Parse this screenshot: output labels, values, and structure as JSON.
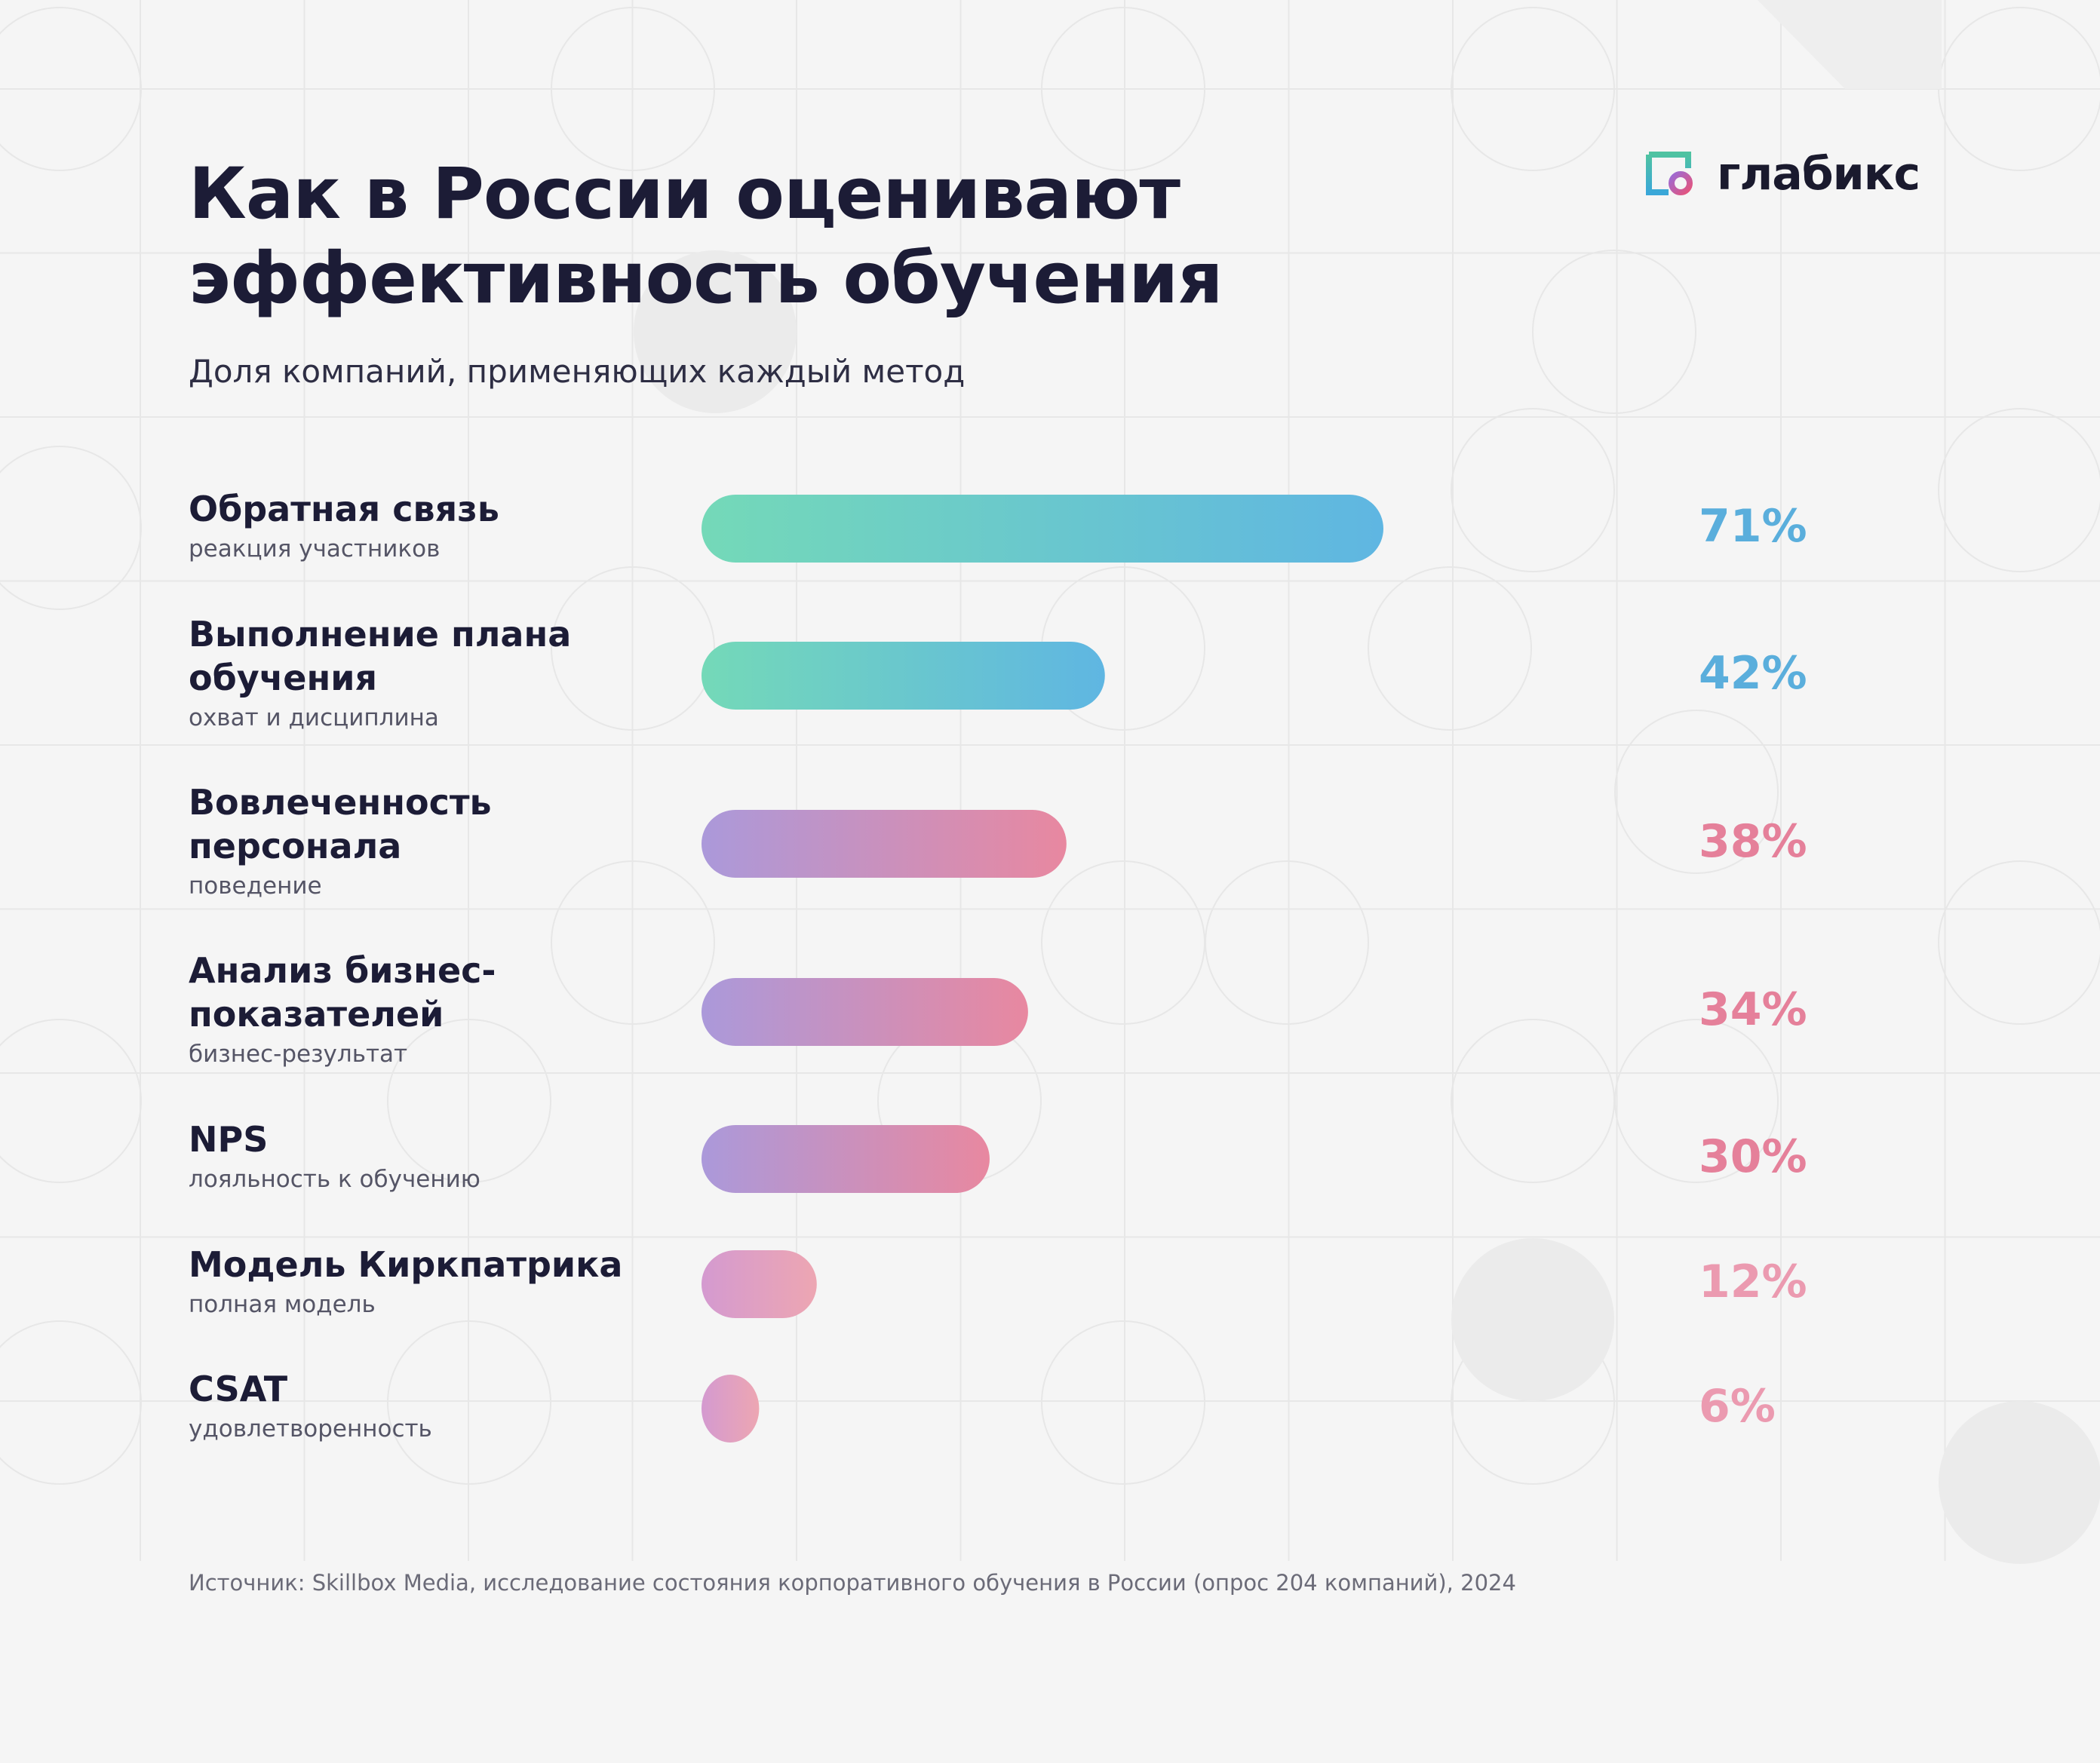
{
  "brand": {
    "logo_text": "глабикс",
    "icon": "logo-frame-circle-icon"
  },
  "title": "Как в России оценивают\nэффективность обучения",
  "subtitle": "Доля компаний, применяющих каждый метод",
  "source": "Источник: Skillbox Media, исследование состояния корпоративного обучения в России (опрос 204 компаний), 2024",
  "colors": {
    "background": "#f5f5f5",
    "text": "#1c1c36",
    "teal_start": "#74d9b8",
    "blue_end": "#5fb6e2",
    "purple_start": "#ab99da",
    "pink_end": "#e888a0",
    "value_blue": "#5aaedc",
    "value_pink": "#e5809a",
    "value_pink_light": "#eb9ab0"
  },
  "chart_data": {
    "type": "bar",
    "orientation": "horizontal",
    "unit": "%",
    "xlim": [
      0,
      100
    ],
    "grid": false,
    "categories": [
      "Обратная связь",
      "Выполнение плана обучения",
      "Вовлеченность персонала",
      "Анализ бизнес-показателей",
      "NPS",
      "Модель Киркпатрика",
      "CSAT"
    ],
    "values": [
      71,
      42,
      38,
      34,
      30,
      12,
      6
    ],
    "rows": [
      {
        "name": "Обратная связь",
        "note": "реакция участников",
        "value": 71,
        "label": "71%",
        "palette": "teal-blue",
        "value_color": "#5aaedc"
      },
      {
        "name": "Выполнение плана обучения",
        "note": "охват и дисциплина",
        "value": 42,
        "label": "42%",
        "palette": "teal-blue",
        "value_color": "#5aaedc"
      },
      {
        "name": "Вовлеченность персонала",
        "note": "поведение",
        "value": 38,
        "label": "38%",
        "palette": "purple-pink",
        "value_color": "#e5809a"
      },
      {
        "name": "Анализ бизнес-показателей",
        "note": "бизнес-результат",
        "value": 34,
        "label": "34%",
        "palette": "purple-pink",
        "value_color": "#e5809a"
      },
      {
        "name": "NPS",
        "note": "лояльность к обучению",
        "value": 30,
        "label": "30%",
        "palette": "purple-pink",
        "value_color": "#e5809a"
      },
      {
        "name": "Модель Киркпатрика",
        "note": "полная модель",
        "value": 12,
        "label": "12%",
        "palette": "pink-light",
        "value_color": "#eb9ab0"
      },
      {
        "name": "CSAT",
        "note": "удовлетворенность",
        "value": 6,
        "label": "6%",
        "palette": "pink-light",
        "value_color": "#eb9ab0"
      }
    ]
  }
}
